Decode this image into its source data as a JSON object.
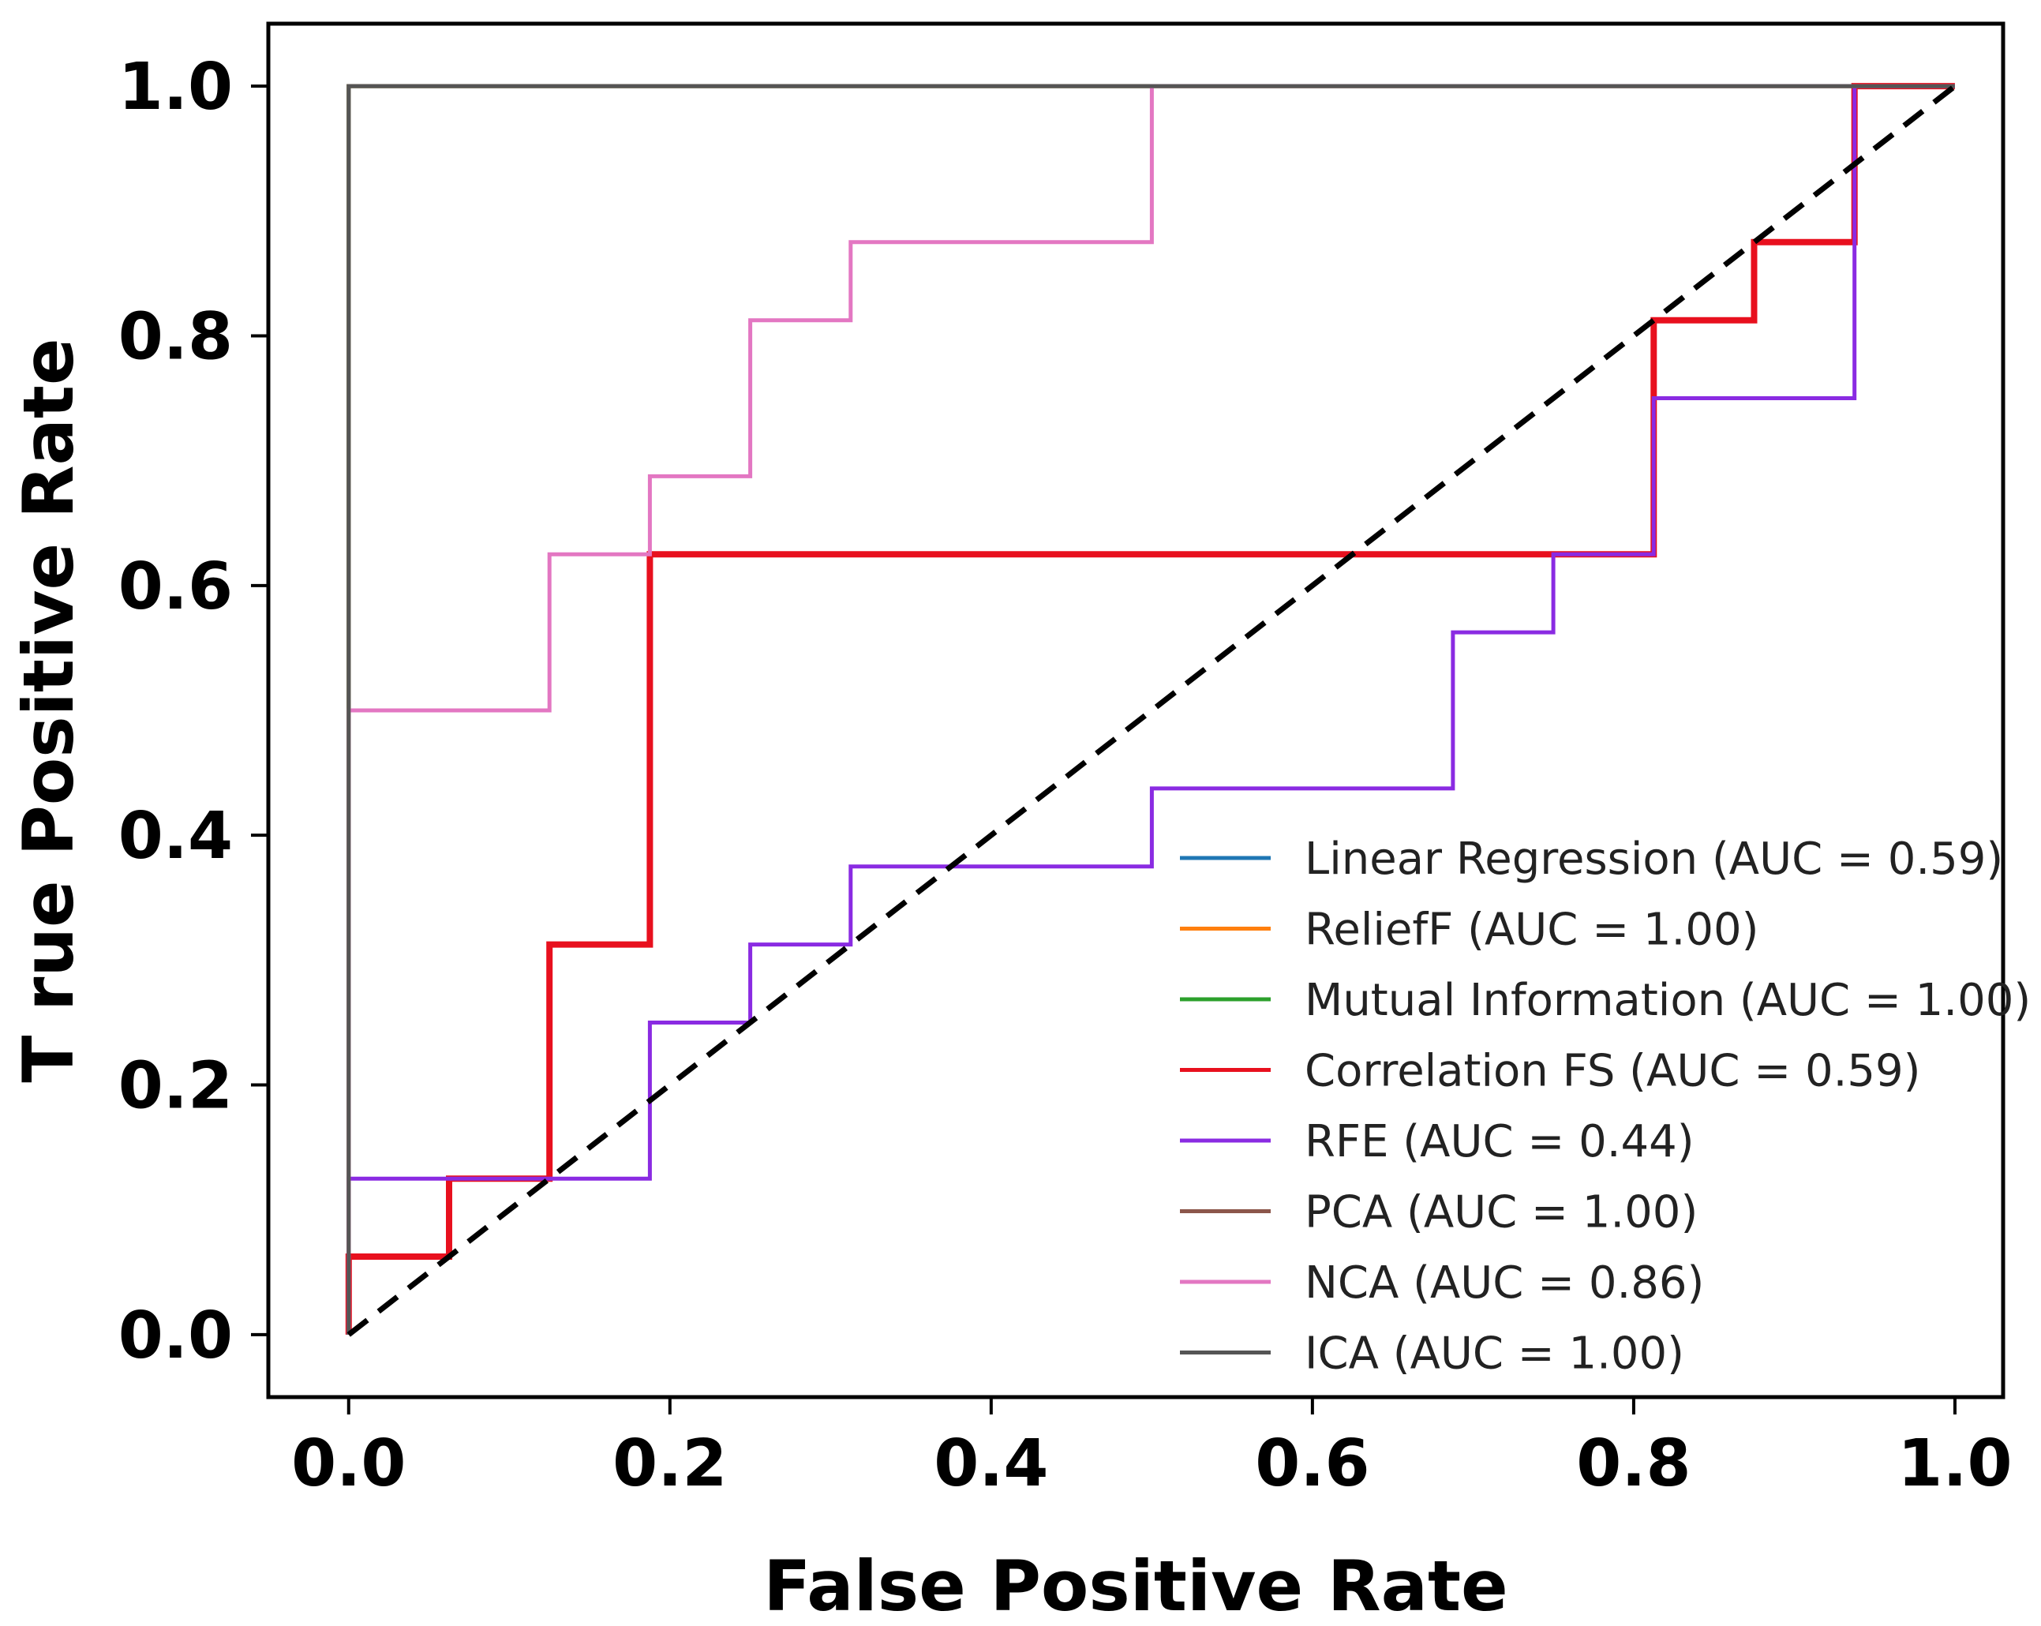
{
  "chart_data": {
    "type": "line",
    "title": "",
    "xlabel": "False Positive Rate",
    "ylabel": "T rue Positive Rate",
    "xlim": [
      -0.05,
      1.03
    ],
    "ylim": [
      -0.05,
      1.05
    ],
    "xticks": [
      0.0,
      0.2,
      0.4,
      0.6,
      0.8,
      1.0
    ],
    "xtick_labels": [
      "0.0",
      "0.2",
      "0.4",
      "0.6",
      "0.8",
      "1.0"
    ],
    "yticks": [
      0.0,
      0.2,
      0.4,
      0.6,
      0.8,
      1.0
    ],
    "ytick_labels": [
      "0.0",
      "0.2",
      "0.4",
      "0.6",
      "0.8",
      "1.0"
    ],
    "grid": false,
    "legend_position": "lower-right",
    "chance_line": {
      "x": [
        0,
        1
      ],
      "y": [
        0,
        1
      ],
      "color": "#000000",
      "style": "dashed"
    },
    "series": [
      {
        "name": "Linear Regression (AUC = 0.59)",
        "color": "#1f77b4",
        "x": [
          0,
          0,
          0.0625,
          0.0625,
          0.125,
          0.125,
          0.1875,
          0.1875,
          0.75,
          0.75,
          0.8125,
          0.8125,
          0.875,
          0.875,
          0.9375,
          0.9375,
          1.0
        ],
        "y": [
          0,
          0.0625,
          0.0625,
          0.125,
          0.125,
          0.3125,
          0.3125,
          0.625,
          0.625,
          0.625,
          0.625,
          0.8125,
          0.8125,
          0.875,
          0.875,
          1.0,
          1.0
        ]
      },
      {
        "name": "ReliefF (AUC = 1.00)",
        "color": "#ff7f0e",
        "x": [
          0,
          0,
          1
        ],
        "y": [
          0,
          1,
          1
        ]
      },
      {
        "name": "Mutual Information (AUC = 1.00)",
        "color": "#2ca02c",
        "x": [
          0,
          0,
          1
        ],
        "y": [
          0,
          1,
          1
        ]
      },
      {
        "name": "Correlation FS (AUC = 0.59)",
        "color": "#e8101e",
        "x": [
          0,
          0,
          0.0625,
          0.0625,
          0.125,
          0.125,
          0.1875,
          0.1875,
          0.75,
          0.75,
          0.8125,
          0.8125,
          0.875,
          0.875,
          0.9375,
          0.9375,
          1.0
        ],
        "y": [
          0,
          0.0625,
          0.0625,
          0.125,
          0.125,
          0.3125,
          0.3125,
          0.625,
          0.625,
          0.625,
          0.625,
          0.8125,
          0.8125,
          0.875,
          0.875,
          1.0,
          1.0
        ]
      },
      {
        "name": "RFE (AUC = 0.44)",
        "color": "#8a2be2",
        "x": [
          0,
          0,
          0.1875,
          0.1875,
          0.25,
          0.25,
          0.3125,
          0.3125,
          0.5,
          0.5,
          0.6875,
          0.6875,
          0.75,
          0.75,
          0.8125,
          0.8125,
          0.9375,
          0.9375,
          1.0
        ],
        "y": [
          0,
          0.125,
          0.125,
          0.25,
          0.25,
          0.3125,
          0.3125,
          0.375,
          0.375,
          0.4375,
          0.4375,
          0.5625,
          0.5625,
          0.625,
          0.625,
          0.75,
          0.75,
          1.0,
          1.0
        ]
      },
      {
        "name": "PCA (AUC = 1.00)",
        "color": "#8c564b",
        "x": [
          0,
          0,
          1
        ],
        "y": [
          0,
          1,
          1
        ]
      },
      {
        "name": "NCA (AUC = 0.86)",
        "color": "#e377c2",
        "x": [
          0,
          0,
          0.125,
          0.125,
          0.1875,
          0.1875,
          0.25,
          0.25,
          0.3125,
          0.3125,
          0.5,
          0.5,
          1.0
        ],
        "y": [
          0,
          0.5,
          0.5,
          0.625,
          0.625,
          0.6875,
          0.6875,
          0.8125,
          0.8125,
          0.875,
          0.875,
          1.0,
          1.0
        ]
      },
      {
        "name": "ICA (AUC = 1.00)",
        "color": "#555555",
        "x": [
          0,
          0,
          1
        ],
        "y": [
          0,
          1,
          1
        ]
      }
    ]
  }
}
